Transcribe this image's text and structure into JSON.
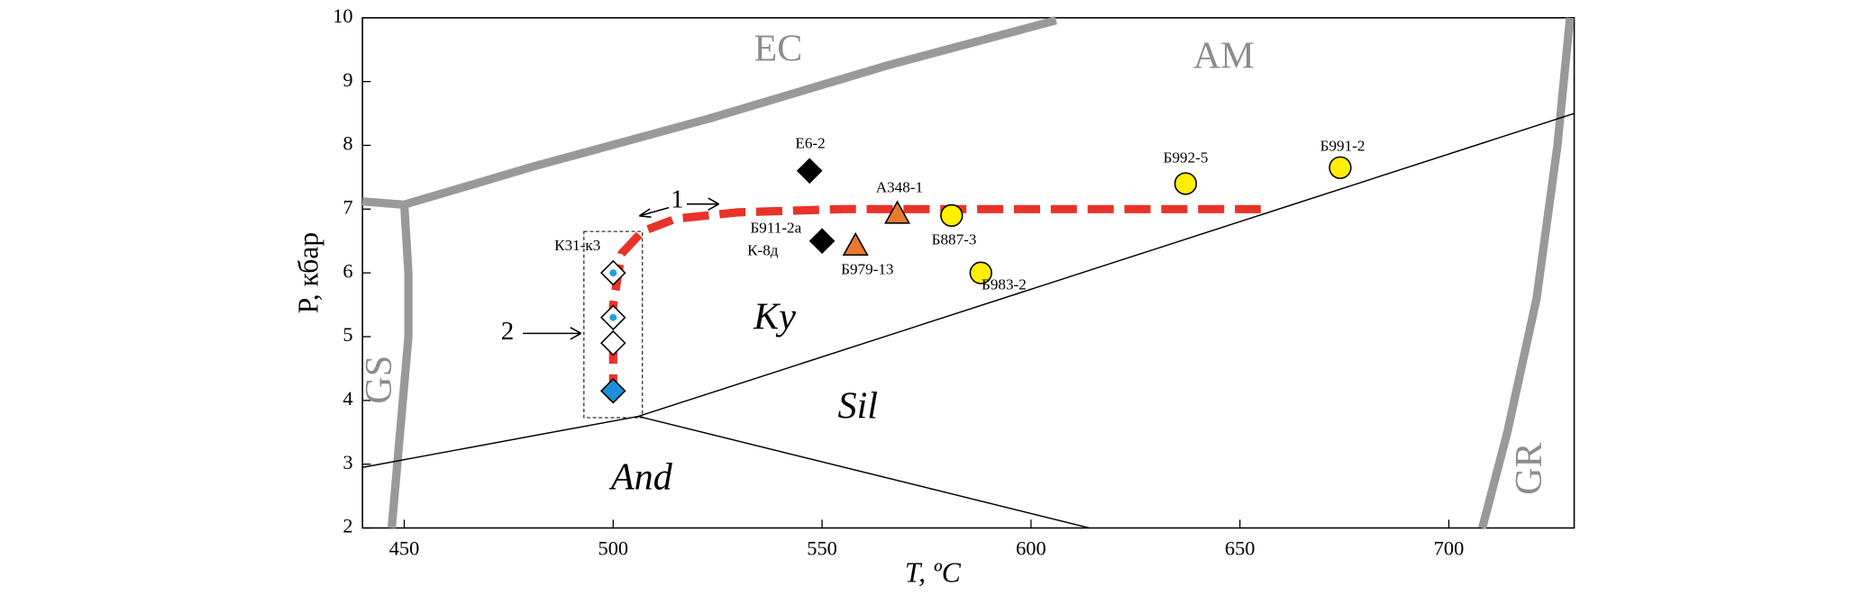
{
  "chart_data": {
    "type": "scatter",
    "xlabel": "T, ºC",
    "ylabel": "P, кбар",
    "xlim": [
      440,
      730
    ],
    "ylim": [
      2,
      10
    ],
    "xticks": [
      450,
      500,
      550,
      600,
      650,
      700
    ],
    "yticks": [
      2,
      3,
      4,
      5,
      6,
      7,
      8,
      9,
      10
    ],
    "boundaries": [
      {
        "style": "thick",
        "color": "#999999",
        "x": [
          440,
          450,
          481,
          523,
          566,
          606
        ],
        "y": [
          7.12,
          7.07,
          7.67,
          8.42,
          9.26,
          9.96
        ]
      },
      {
        "style": "thick",
        "color": "#999999",
        "x": [
          450,
          451,
          451,
          449,
          447
        ],
        "y": [
          7.07,
          6.0,
          5.0,
          3.5,
          2
        ]
      },
      {
        "style": "thick",
        "color": "#999999",
        "x": [
          708,
          714,
          721,
          726,
          729
        ],
        "y": [
          2,
          3.5,
          5.6,
          8,
          10
        ]
      },
      {
        "style": "thin",
        "color": "#000000",
        "x": [
          440,
          506
        ],
        "y": [
          2.95,
          3.75
        ]
      },
      {
        "style": "thin",
        "color": "#000000",
        "x": [
          506,
          730
        ],
        "y": [
          3.75,
          8.5
        ]
      },
      {
        "style": "thin",
        "color": "#000000",
        "x": [
          506,
          614
        ],
        "y": [
          3.75,
          2
        ]
      },
      {
        "style": "dashed",
        "color": "#e8332a",
        "x": [
          500,
          500,
          502,
          507,
          515,
          530,
          555,
          655
        ],
        "y": [
          4.0,
          5.5,
          6.3,
          6.65,
          6.85,
          6.95,
          7.0,
          7.0
        ]
      }
    ],
    "box": {
      "x": [
        493,
        507
      ],
      "y": [
        3.73,
        6.65
      ]
    },
    "series": [
      {
        "marker": "diamond",
        "color": "#000000",
        "x": [
          547,
          550
        ],
        "y": [
          7.6,
          6.5
        ]
      },
      {
        "marker": "triangle",
        "color": "#e8792e",
        "x": [
          568,
          558
        ],
        "y": [
          6.93,
          6.43
        ]
      },
      {
        "marker": "circle",
        "color": "#ffef00",
        "x": [
          581,
          588,
          637,
          674
        ],
        "y": [
          6.9,
          6.0,
          7.4,
          7.65
        ]
      },
      {
        "marker": "diamond",
        "color": "#ffffff",
        "dot_color": "#1ea0e0",
        "x": [
          500,
          500
        ],
        "y": [
          6.0,
          5.3
        ]
      },
      {
        "marker": "diamond",
        "color": "#ffffff",
        "x": [
          500
        ],
        "y": [
          4.9
        ]
      },
      {
        "marker": "diamond",
        "color": "#1e8fd8",
        "x": [
          500
        ],
        "y": [
          4.15
        ]
      }
    ],
    "point_labels": [
      "Е6-2",
      "Б911-2а",
      "К-8д",
      "А348-1",
      "Б979-13",
      "Б887-3",
      "Б983-2",
      "Б992-5",
      "Б991-2",
      "К31-к3"
    ],
    "field_labels": [
      "EC",
      "AM",
      "GS",
      "GR",
      "Ky",
      "Sil",
      "And"
    ],
    "annotations": [
      "1",
      "2"
    ]
  }
}
